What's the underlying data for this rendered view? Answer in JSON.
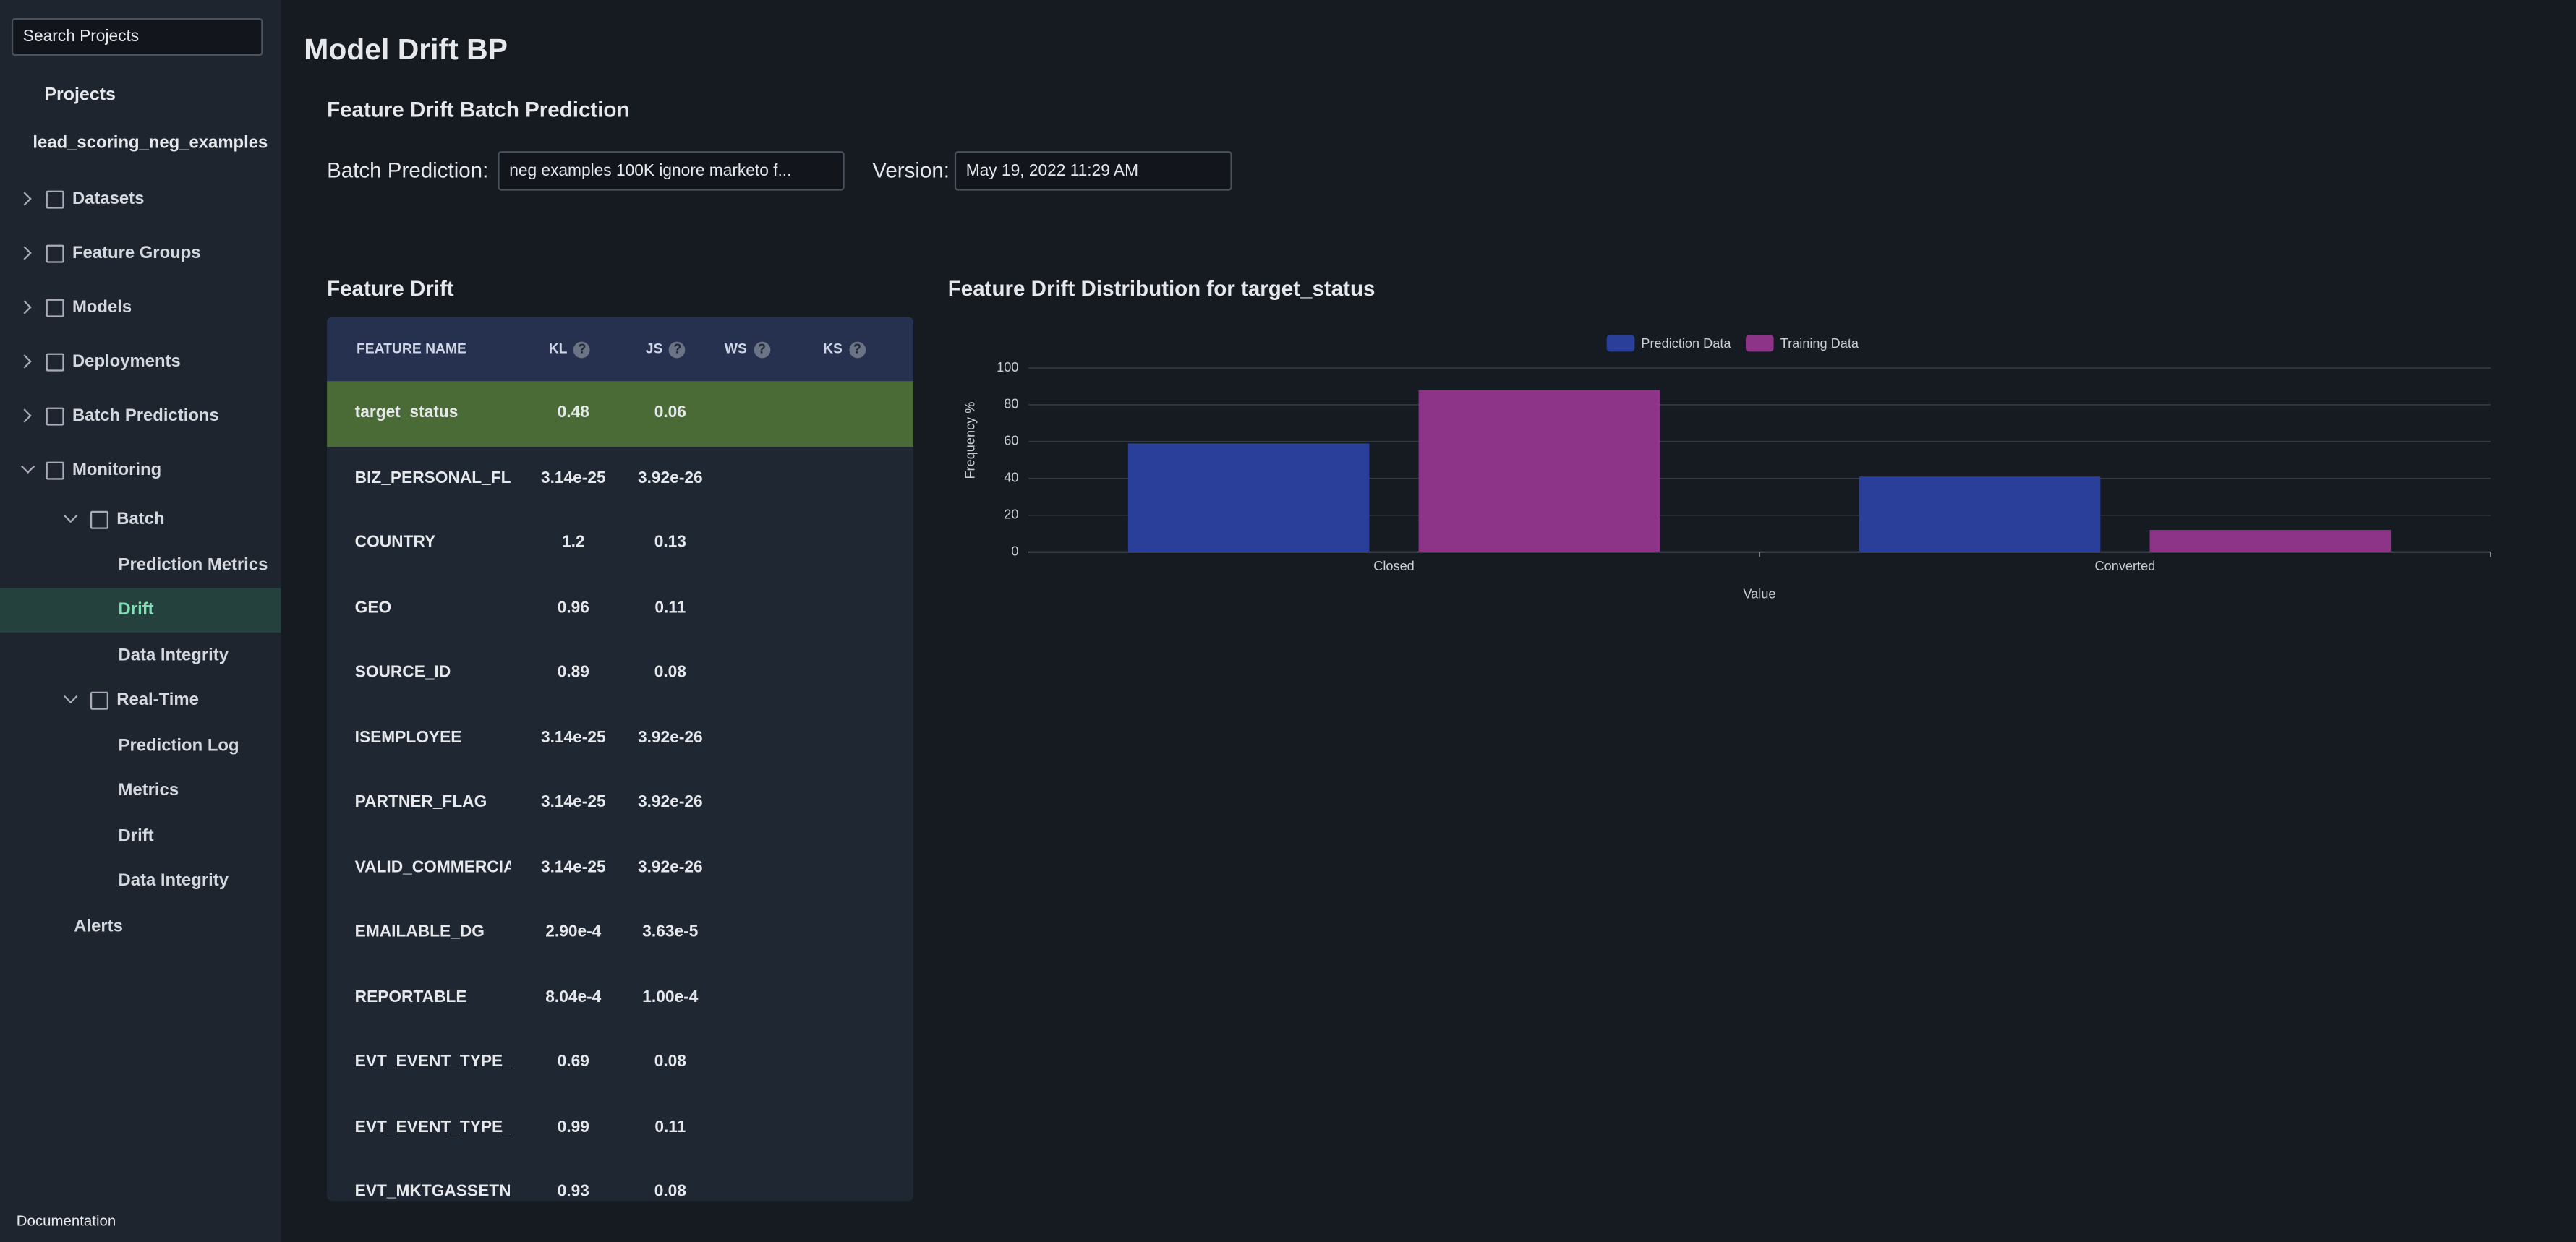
{
  "sidebar": {
    "search_placeholder": "Search Projects",
    "projects_label": "Projects",
    "project_name": "lead_scoring_neg_examples",
    "nav": [
      {
        "label": "Datasets"
      },
      {
        "label": "Feature Groups"
      },
      {
        "label": "Models"
      },
      {
        "label": "Deployments"
      },
      {
        "label": "Batch Predictions"
      },
      {
        "label": "Monitoring",
        "children": [
          {
            "label": "Batch",
            "children": [
              {
                "label": "Prediction Metrics"
              },
              {
                "label": "Drift",
                "selected": true
              },
              {
                "label": "Data Integrity"
              }
            ]
          },
          {
            "label": "Real-Time",
            "children": [
              {
                "label": "Prediction Log"
              },
              {
                "label": "Metrics"
              },
              {
                "label": "Drift"
              },
              {
                "label": "Data Integrity"
              }
            ]
          },
          {
            "label": "Alerts"
          }
        ]
      }
    ],
    "footer": "Documentation"
  },
  "header": {
    "title": "Model Drift BP",
    "subtitle": "Feature Drift Batch Prediction",
    "batch_label": "Batch Prediction:",
    "batch_value": "neg examples 100K ignore marketo f...",
    "version_label": "Version:",
    "version_value": "May 19, 2022 11:29 AM"
  },
  "table": {
    "title": "Feature Drift",
    "help_icon": "?",
    "columns": [
      "FEATURE NAME",
      "KL",
      "JS",
      "WS",
      "KS"
    ],
    "rows": [
      [
        "target_status",
        "0.48",
        "0.06"
      ],
      [
        "BIZ_PERSONAL_FLA",
        "3.14e-25",
        "3.92e-26"
      ],
      [
        "COUNTRY",
        "1.2",
        "0.13"
      ],
      [
        "GEO",
        "0.96",
        "0.11"
      ],
      [
        "SOURCE_ID",
        "0.89",
        "0.08"
      ],
      [
        "ISEMPLOYEE",
        "3.14e-25",
        "3.92e-26"
      ],
      [
        "PARTNER_FLAG",
        "3.14e-25",
        "3.92e-26"
      ],
      [
        "VALID_COMMERCIA",
        "3.14e-25",
        "3.92e-26"
      ],
      [
        "EMAILABLE_DG",
        "2.90e-4",
        "3.63e-5"
      ],
      [
        "REPORTABLE",
        "8.04e-4",
        "1.00e-4"
      ],
      [
        "EVT_EVENT_TYPE_E",
        "0.69",
        "0.08"
      ],
      [
        "EVT_EVENT_TYPE_P",
        "0.99",
        "0.11"
      ],
      [
        "EVT_MKTGASSETNA",
        "0.93",
        "0.08"
      ]
    ]
  },
  "chart_data": {
    "type": "bar",
    "title": "Feature Drift Distribution for target_status",
    "x_label": "Value",
    "y_label": "Frequency %",
    "categories": [
      "Closed",
      "Converted"
    ],
    "series": [
      {
        "name": "Prediction Data",
        "color": "#2a3f9a",
        "values": [
          59,
          41
        ]
      },
      {
        "name": "Training Data",
        "color": "#8e3488",
        "values": [
          88,
          12
        ]
      }
    ],
    "ylim": [
      0,
      100
    ],
    "yticks": [
      0,
      20,
      40,
      60,
      80,
      100
    ],
    "grid": true,
    "legend": "top"
  }
}
